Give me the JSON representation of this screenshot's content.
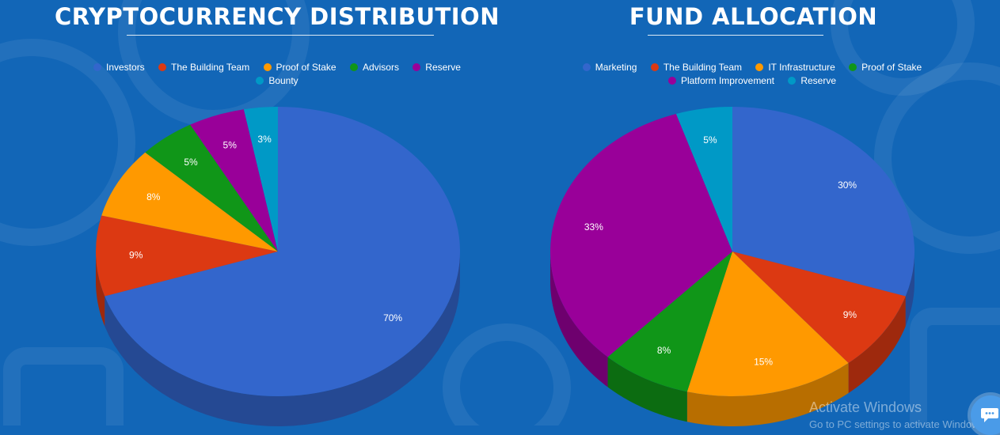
{
  "chart_data": [
    {
      "type": "pie",
      "title": "CRYPTOCURRENCY DISTRIBUTION",
      "legend_position": "top",
      "categories": [
        "Investors",
        "The Building Team",
        "Proof of Stake",
        "Advisors",
        "Reserve",
        "Bounty"
      ],
      "values": [
        70,
        9,
        8,
        5,
        5,
        3
      ],
      "labels": [
        "70%",
        "9%",
        "8%",
        "5%",
        "5%",
        "3%"
      ],
      "colors": [
        "#3366cc",
        "#dc3912",
        "#ff9900",
        "#109618",
        "#990099",
        "#0099c6"
      ],
      "three_d": true
    },
    {
      "type": "pie",
      "title": "FUND ALLOCATION",
      "legend_position": "top",
      "categories": [
        "Marketing",
        "The Building Team",
        "IT Infrastructure",
        "Proof of Stake",
        "Platform Improvement",
        "Reserve"
      ],
      "values": [
        30,
        9,
        15,
        8,
        33,
        5
      ],
      "labels": [
        "30%",
        "9%",
        "15%",
        "8%",
        "33%",
        "5%"
      ],
      "colors": [
        "#3366cc",
        "#dc3912",
        "#ff9900",
        "#109618",
        "#990099",
        "#0099c6"
      ],
      "three_d": true
    }
  ],
  "overlay": {
    "watermark_title": "Activate Windows",
    "watermark_subtitle": "Go to PC settings to activate Windows",
    "chat_icon": "chat-bubble-icon"
  }
}
